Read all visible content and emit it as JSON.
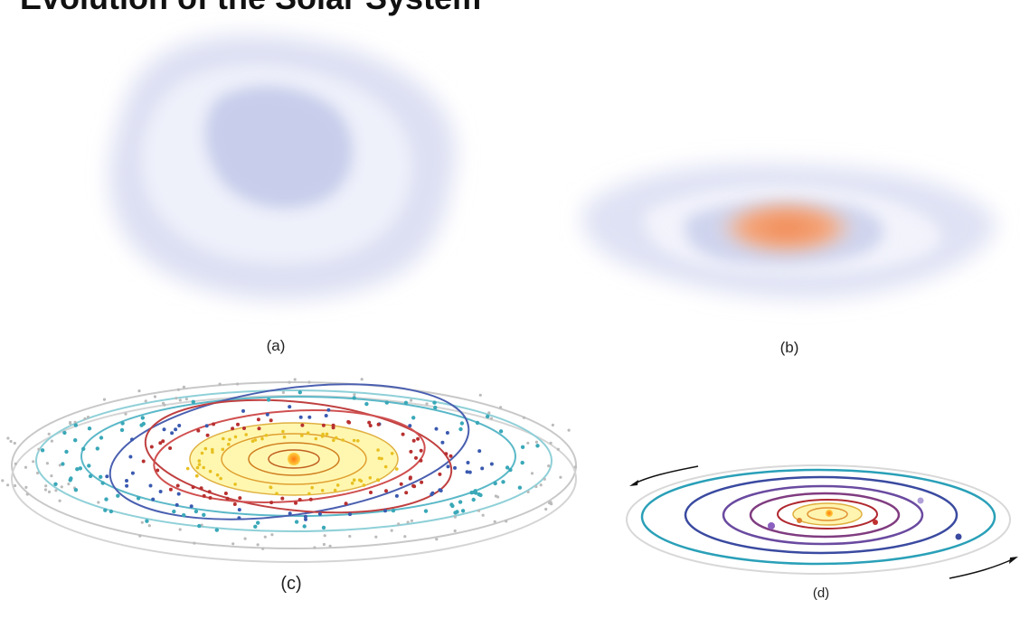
{
  "title": "Evolution of the Solar System",
  "panels": [
    {
      "label": "(a)"
    },
    {
      "label": "(b)"
    },
    {
      "label": "(c)"
    },
    {
      "label": "(d)"
    }
  ]
}
